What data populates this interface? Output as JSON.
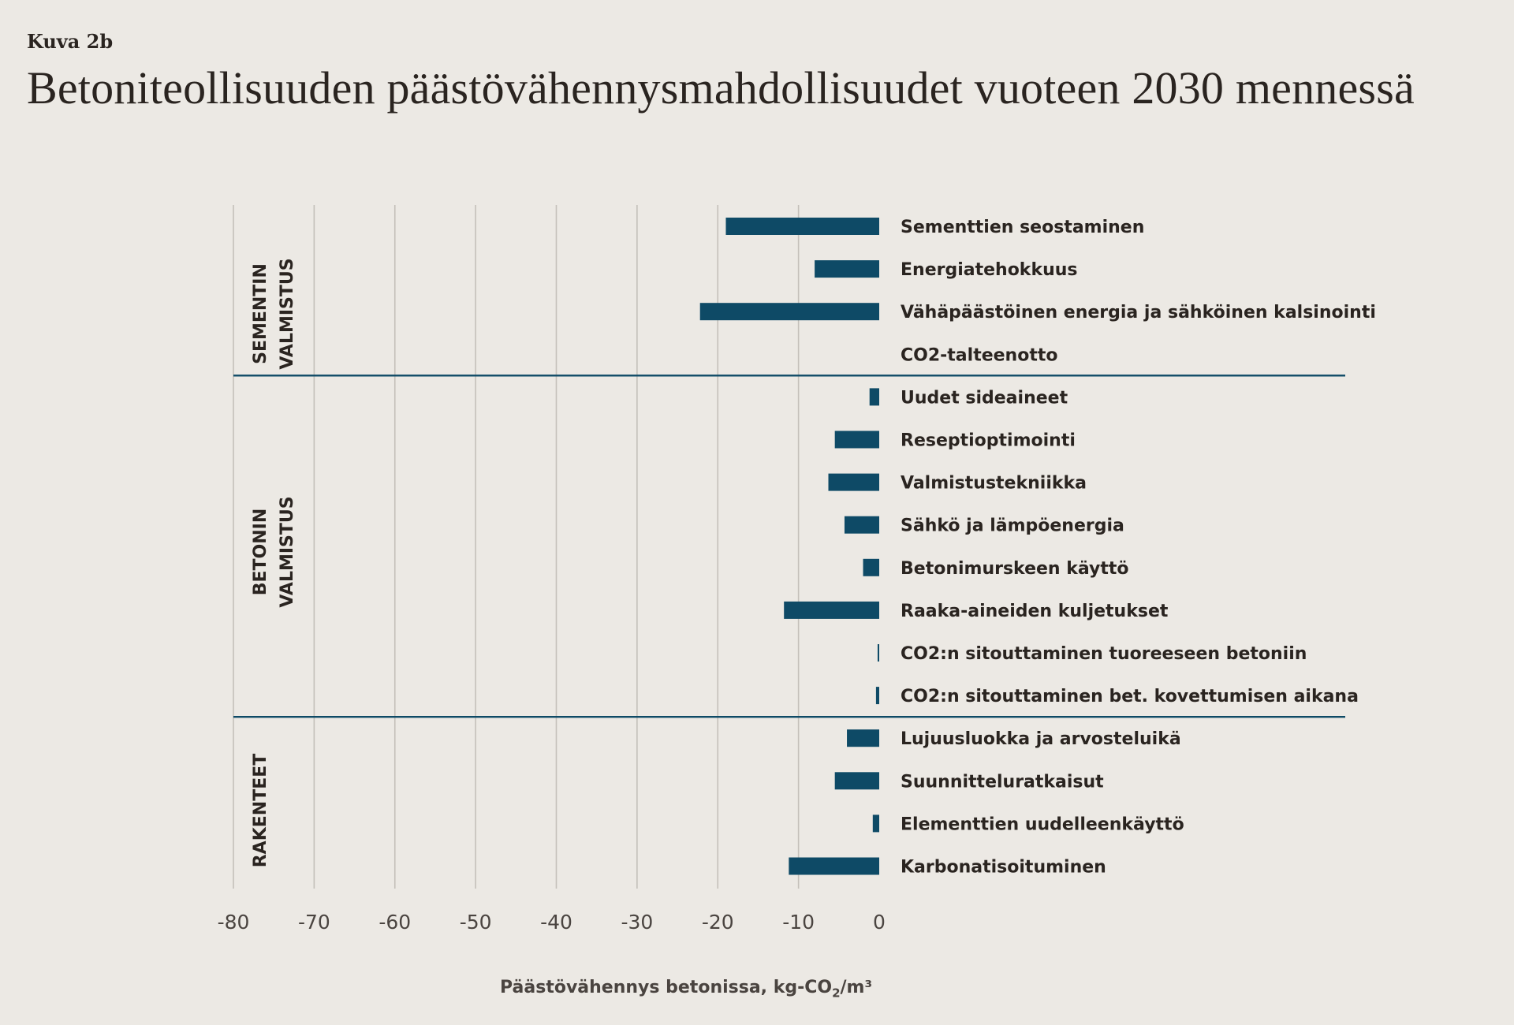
{
  "header": {
    "kicker": "Kuva 2b",
    "title": "Betoniteollisuuden päästövähennysmahdollisuudet vuoteen 2030 mennessä"
  },
  "chart_data": {
    "type": "bar",
    "orientation": "horizontal",
    "title": "Betoniteollisuuden päästövähennysmahdollisuudet vuoteen 2030 mennessä",
    "xlabel": "Päästövähennys betonissa, kg-CO2/m3",
    "xlim": [
      -80,
      0
    ],
    "xticks": [
      "-80",
      "-70",
      "-60",
      "-50",
      "-40",
      "-30",
      "-20",
      "-10",
      "0"
    ],
    "grid": true,
    "bar_color": "#0e4a66",
    "groups": [
      {
        "label_lines": [
          "SEMENTIN",
          "VALMISTUS"
        ],
        "items": [
          {
            "label": "Sementtien seostaminen",
            "value": -19
          },
          {
            "label": "Energiatehokkuus",
            "value": -8
          },
          {
            "label": "Vähäpäästöinen energia ja sähköinen kalsinointi",
            "value": -22.2
          },
          {
            "label": "CO2-talteenotto",
            "value": 0
          }
        ]
      },
      {
        "label_lines": [
          "BETONIN",
          "VALMISTUS"
        ],
        "items": [
          {
            "label": "Uudet sideaineet",
            "value": -1.2
          },
          {
            "label": "Reseptioptimointi",
            "value": -5.5
          },
          {
            "label": "Valmistustekniikka",
            "value": -6.3
          },
          {
            "label": "Sähkö ja lämpöenergia",
            "value": -4.3
          },
          {
            "label": "Betonimurskeen käyttö",
            "value": -2
          },
          {
            "label": "Raaka-aineiden kuljetukset",
            "value": -11.8
          },
          {
            "label": "CO2:n sitouttaminen tuoreeseen betoniin",
            "value": -0.2
          },
          {
            "label": "CO2:n sitouttaminen bet. kovettumisen aikana",
            "value": -0.4
          }
        ]
      },
      {
        "label_lines": [
          "RAKENTEET"
        ],
        "items": [
          {
            "label": "Lujuusluokka ja arvosteluikä",
            "value": -4
          },
          {
            "label": "Suunnitteluratkaisut",
            "value": -5.5
          },
          {
            "label": "Elementtien uudelleenkäyttö",
            "value": -0.8
          },
          {
            "label": "Karbonatisoituminen",
            "value": -11.2
          }
        ]
      }
    ]
  },
  "axis": {
    "label_main": "Päästövähennys betonissa, kg-CO",
    "label_sub": "2",
    "label_end": "/m³"
  }
}
